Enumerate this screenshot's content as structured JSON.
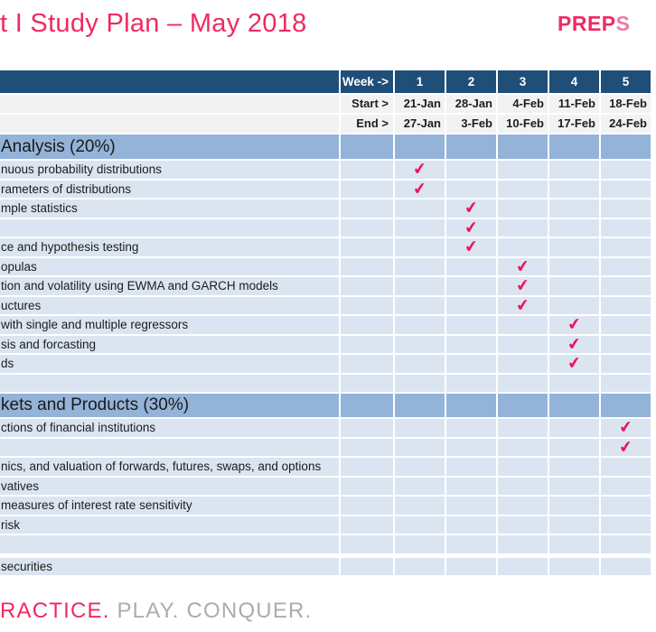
{
  "header": {
    "title": "t I Study Plan – May 2018",
    "logo_main": "PREP",
    "logo_suffix": "S"
  },
  "table": {
    "week_label": "Week ->",
    "start_label": "Start >",
    "end_label": "End >",
    "weeks": [
      "1",
      "2",
      "3",
      "4",
      "5"
    ],
    "start_dates": [
      "21-Jan",
      "28-Jan",
      "4-Feb",
      "11-Feb",
      "18-Feb"
    ],
    "end_dates": [
      "27-Jan",
      "3-Feb",
      "10-Feb",
      "17-Feb",
      "24-Feb"
    ],
    "check_icon": "✔",
    "sections": [
      {
        "title": "Analysis (20%)",
        "rows": [
          {
            "topic": "nuous probability distributions",
            "week": 1
          },
          {
            "topic": "rameters of distributions",
            "week": 1
          },
          {
            "topic": "mple statistics",
            "week": 2
          },
          {
            "topic": "",
            "week": 2
          },
          {
            "topic": "ce and hypothesis testing",
            "week": 2
          },
          {
            "topic": "opulas",
            "week": 3
          },
          {
            "topic": "tion and volatility using EWMA and GARCH models",
            "week": 3
          },
          {
            "topic": "uctures",
            "week": 3
          },
          {
            "topic": "with single and multiple regressors",
            "week": 4
          },
          {
            "topic": "sis and forcasting",
            "week": 4
          },
          {
            "topic": "ds",
            "week": 4
          },
          {
            "topic": "",
            "week": null
          }
        ]
      },
      {
        "title": "kets and Products (30%)",
        "rows": [
          {
            "topic": "ctions of financial institutions",
            "week": 5
          },
          {
            "topic": "",
            "week": 5
          },
          {
            "topic": "nics, and valuation of forwards, futures, swaps, and options",
            "week": null
          },
          {
            "topic": "vatives",
            "week": null
          },
          {
            "topic": "measures of interest rate sensitivity",
            "week": null
          },
          {
            "topic": "risk",
            "week": null
          },
          {
            "topic": "",
            "week": null
          },
          {
            "topic": "securities",
            "week": null,
            "spacer_before": true
          }
        ]
      }
    ]
  },
  "footer": {
    "tagline_highlight": "RACTICE.",
    "tagline_rest": " PLAY. CONQUER."
  },
  "colors": {
    "accent_pink": "#EE2A62",
    "check_pink": "#EB165D",
    "header_navy": "#1F4E79",
    "section_blue": "#94B3D8",
    "row_blue": "#DBE5F1",
    "label_row_gray": "#F2F2F2",
    "tagline_gray": "#ABACAE"
  }
}
